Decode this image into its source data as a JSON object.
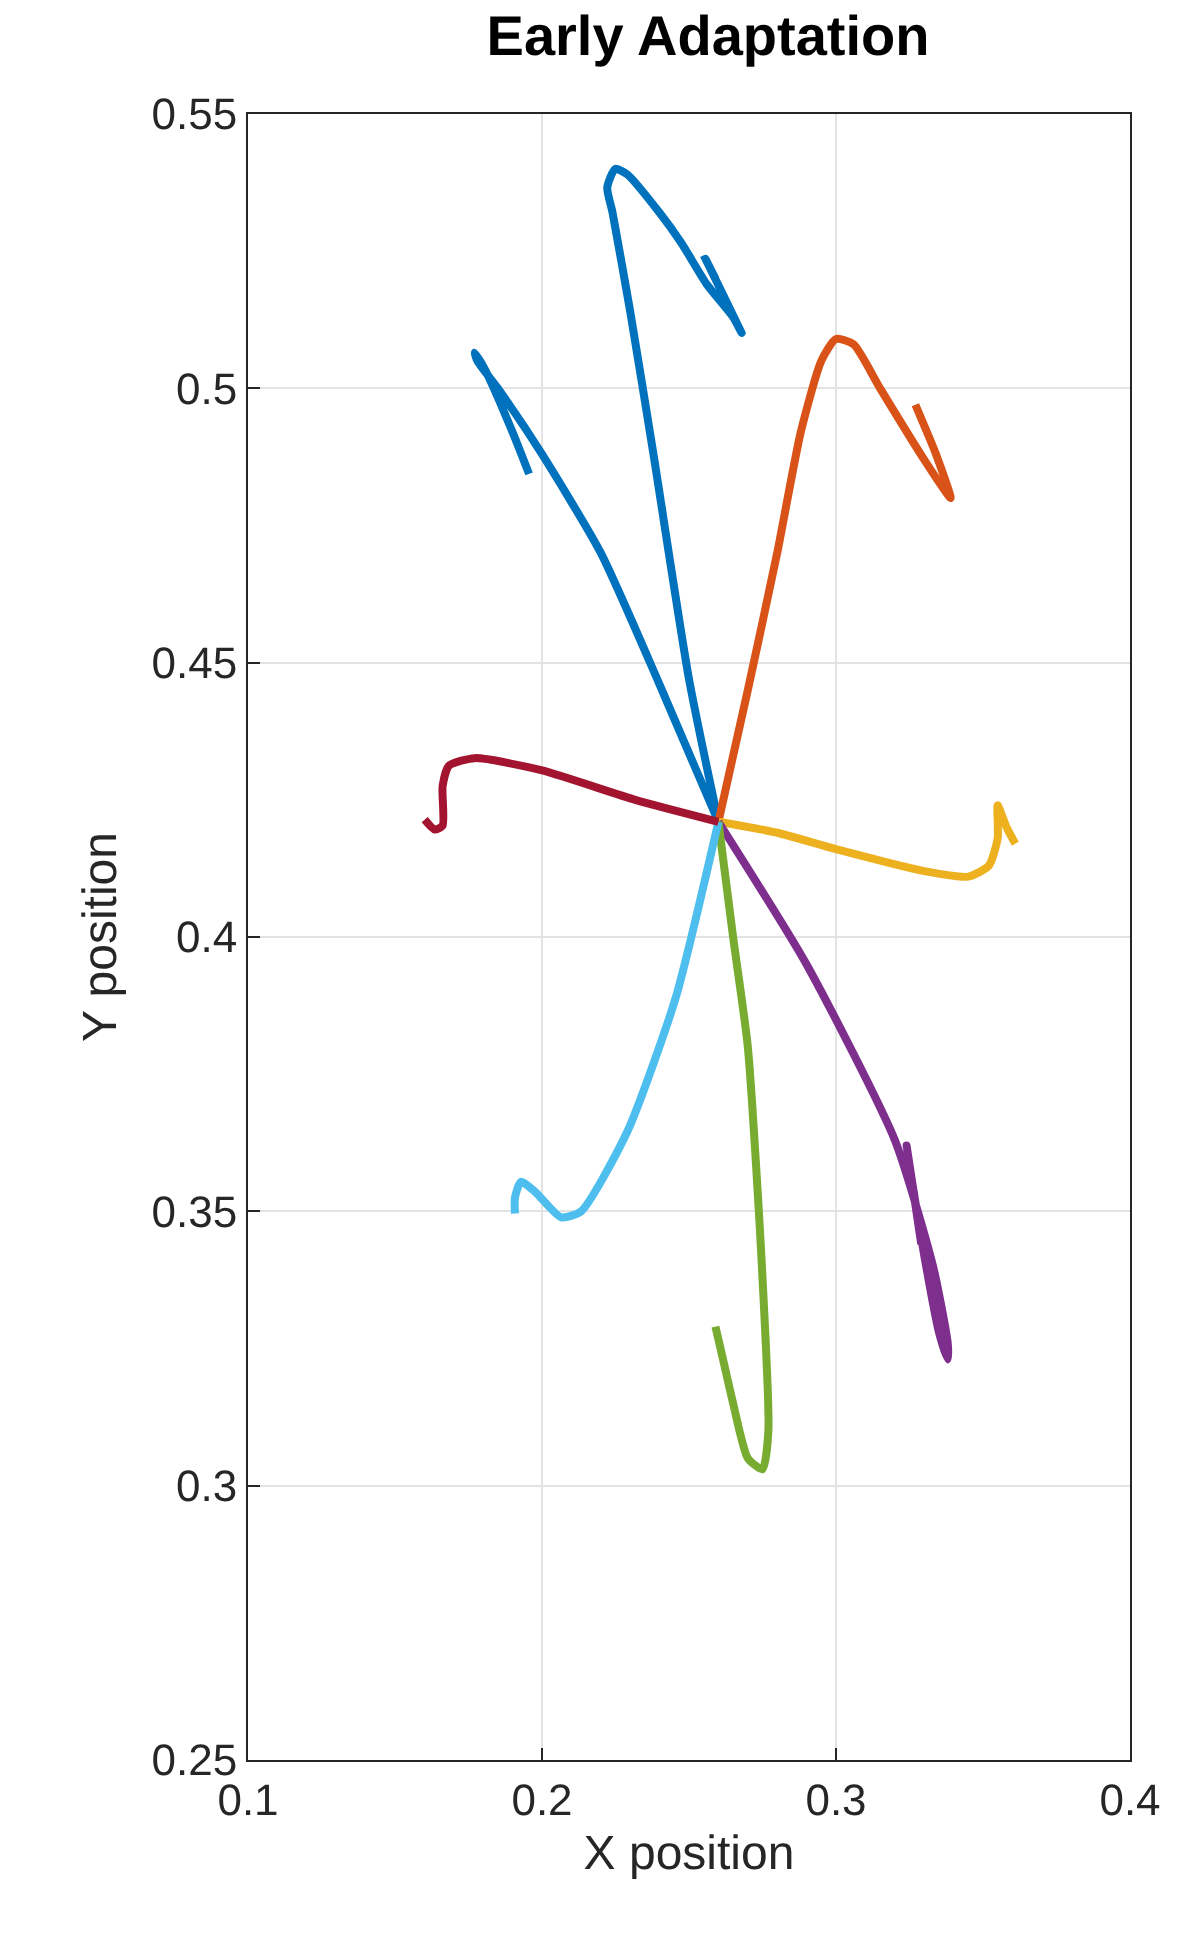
{
  "chart_data": {
    "type": "line",
    "title": "Early Adaptation",
    "xlabel": "X position",
    "ylabel": "Y position",
    "xlim": [
      0.1,
      0.4
    ],
    "xticks": [
      0.1,
      0.2,
      0.3,
      0.4
    ],
    "ylim": [
      0.25,
      0.55
    ],
    "yticks": [
      0.25,
      0.3,
      0.35,
      0.4,
      0.45,
      0.5,
      0.55
    ],
    "grid": true,
    "marker": "none",
    "line_style": "solid",
    "series": [
      {
        "color": "#0072bd",
        "x": [
          0.26,
          0.25,
          0.238,
          0.23,
          0.224,
          0.2222,
          0.2249,
          0.229,
          0.24,
          0.2474,
          0.256,
          0.265,
          0.2679,
          0.2556,
          0.259
        ],
        "values": [
          0.421,
          0.447,
          0.4877,
          0.514,
          0.532,
          0.5366,
          0.54,
          0.539,
          0.532,
          0.5265,
          0.519,
          0.513,
          0.5101,
          0.5236,
          0.52
        ]
      },
      {
        "color": "#0072bd",
        "x": [
          0.26,
          0.24,
          0.22,
          0.2,
          0.185,
          0.178,
          0.1771,
          0.181,
          0.19,
          0.1956
        ],
        "values": [
          0.421,
          0.446,
          0.47,
          0.488,
          0.5,
          0.505,
          0.5065,
          0.503,
          0.492,
          0.4844
        ]
      },
      {
        "color": "#d95319",
        "x": [
          0.26,
          0.27,
          0.28,
          0.288,
          0.295,
          0.3,
          0.306,
          0.315,
          0.33,
          0.339,
          0.334,
          0.327
        ],
        "values": [
          0.421,
          0.445,
          0.47,
          0.492,
          0.505,
          0.509,
          0.508,
          0.5,
          0.487,
          0.48,
          0.488,
          0.497
        ]
      },
      {
        "color": "#edb120",
        "x": [
          0.26,
          0.28,
          0.3,
          0.33,
          0.345,
          0.352,
          0.355,
          0.355,
          0.358,
          0.361
        ],
        "values": [
          0.421,
          0.419,
          0.416,
          0.412,
          0.411,
          0.413,
          0.418,
          0.424,
          0.42,
          0.417
        ]
      },
      {
        "color": "#7e2f8e",
        "x": [
          0.26,
          0.29,
          0.32,
          0.333,
          0.338,
          0.338,
          0.335,
          0.33,
          0.326,
          0.324,
          0.329
        ],
        "values": [
          0.421,
          0.395,
          0.363,
          0.34,
          0.326,
          0.323,
          0.328,
          0.342,
          0.355,
          0.362,
          0.344
        ]
      },
      {
        "color": "#77ac30",
        "x": [
          0.26,
          0.265,
          0.27,
          0.2747,
          0.277,
          0.275,
          0.27,
          0.265,
          0.262,
          0.259
        ],
        "values": [
          0.421,
          0.4,
          0.38,
          0.3409,
          0.31,
          0.303,
          0.305,
          0.315,
          0.322,
          0.329
        ]
      },
      {
        "color": "#4dbeee",
        "x": [
          0.26,
          0.2454,
          0.229,
          0.2133,
          0.2065,
          0.1976,
          0.1928,
          0.1908,
          0.1908
        ],
        "values": [
          0.421,
          0.3888,
          0.3645,
          0.35,
          0.3489,
          0.3536,
          0.3554,
          0.3525,
          0.3496
        ]
      },
      {
        "color": "#a2142f",
        "x": [
          0.26,
          0.2317,
          0.1997,
          0.1771,
          0.1683,
          0.1662,
          0.1662,
          0.1635,
          0.1601
        ],
        "values": [
          0.421,
          0.425,
          0.4304,
          0.4326,
          0.4312,
          0.4275,
          0.4203,
          0.4196,
          0.4214
        ]
      }
    ]
  }
}
